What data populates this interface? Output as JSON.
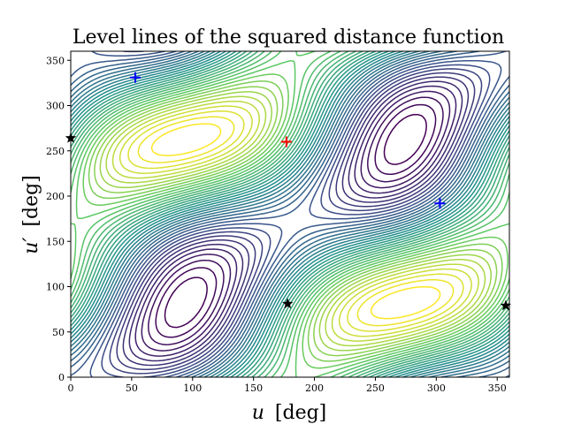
{
  "chart_data": {
    "type": "contour",
    "title": "Level lines of the squared distance function",
    "xlabel_var": "u",
    "xlabel_unit": "[deg]",
    "ylabel_var": "u′",
    "ylabel_unit": "[deg]",
    "xlim": [
      0,
      360
    ],
    "ylim": [
      0,
      360
    ],
    "xticks": [
      0,
      50,
      100,
      150,
      200,
      250,
      300,
      350
    ],
    "yticks": [
      0,
      50,
      100,
      150,
      200,
      250,
      300,
      350
    ],
    "colormap": "viridis",
    "markers": [
      {
        "type": "maximum",
        "symbol": "plus",
        "color": "#ff0000",
        "u": 177,
        "v": 260
      },
      {
        "type": "saddle",
        "symbol": "plus",
        "color": "#0000ff",
        "u": 53,
        "v": 331
      },
      {
        "type": "saddle",
        "symbol": "plus",
        "color": "#0000ff",
        "u": 303,
        "v": 192
      },
      {
        "type": "minimum",
        "symbol": "star",
        "color": "#000000",
        "u": 0,
        "v": 264
      },
      {
        "type": "minimum",
        "symbol": "star",
        "color": "#000000",
        "u": 178,
        "v": 81
      },
      {
        "type": "minimum",
        "symbol": "star",
        "color": "#000000",
        "u": 357,
        "v": 79
      }
    ]
  }
}
